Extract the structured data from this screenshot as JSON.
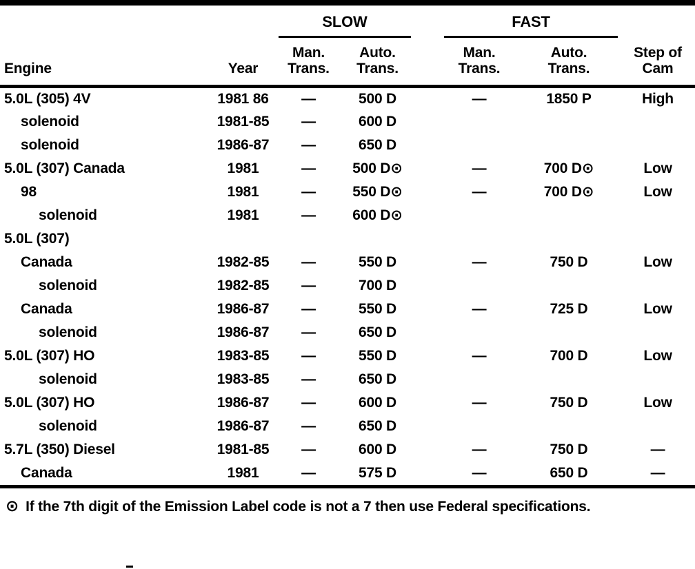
{
  "page": {
    "ink_color": "#000000",
    "paper_color": "#ffffff"
  },
  "table": {
    "groups": {
      "slow": "SLOW",
      "fast": "FAST"
    },
    "columns": {
      "engine": "Engine",
      "year": "Year",
      "slow_man": "Man.\nTrans.",
      "slow_auto": "Auto.\nTrans.",
      "fast_man": "Man.\nTrans.",
      "fast_auto": "Auto.\nTrans.",
      "cam": "Step of\nCam"
    },
    "rows": [
      {
        "engine": "5.0L (305) 4V",
        "indent": 0,
        "year": "1981 86",
        "slow_man": "—",
        "slow_auto": "500 D",
        "fast_man": "—",
        "fast_auto": "1850 P",
        "cam": "High"
      },
      {
        "engine": "solenoid",
        "indent": 1,
        "year": "1981-85",
        "slow_man": "—",
        "slow_auto": "600 D",
        "fast_man": "",
        "fast_auto": "",
        "cam": ""
      },
      {
        "engine": "solenoid",
        "indent": 1,
        "year": "1986-87",
        "slow_man": "—",
        "slow_auto": "650 D",
        "fast_man": "",
        "fast_auto": "",
        "cam": ""
      },
      {
        "engine": "5.0L (307) Canada",
        "indent": 0,
        "year": "1981",
        "slow_man": "—",
        "slow_auto": "500 D⊙",
        "fast_man": "—",
        "fast_auto": "700 D⊙",
        "cam": "Low"
      },
      {
        "engine": "98",
        "indent": 1,
        "year": "1981",
        "slow_man": "—",
        "slow_auto": "550 D⊙",
        "fast_man": "—",
        "fast_auto": "700 D⊙",
        "cam": "Low"
      },
      {
        "engine": "solenoid",
        "indent": 2,
        "year": "1981",
        "slow_man": "—",
        "slow_auto": "600 D⊙",
        "fast_man": "",
        "fast_auto": "",
        "cam": ""
      },
      {
        "engine": "5.0L (307)",
        "indent": 0,
        "year": "",
        "slow_man": "",
        "slow_auto": "",
        "fast_man": "",
        "fast_auto": "",
        "cam": ""
      },
      {
        "engine": "Canada",
        "indent": 1,
        "year": "1982-85",
        "slow_man": "—",
        "slow_auto": "550 D",
        "fast_man": "—",
        "fast_auto": "750 D",
        "cam": "Low"
      },
      {
        "engine": "solenoid",
        "indent": 2,
        "year": "1982-85",
        "slow_man": "—",
        "slow_auto": "700 D",
        "fast_man": "",
        "fast_auto": "",
        "cam": ""
      },
      {
        "engine": "Canada",
        "indent": 1,
        "year": "1986-87",
        "slow_man": "—",
        "slow_auto": "550 D",
        "fast_man": "—",
        "fast_auto": "725 D",
        "cam": "Low"
      },
      {
        "engine": "solenoid",
        "indent": 2,
        "year": "1986-87",
        "slow_man": "—",
        "slow_auto": "650 D",
        "fast_man": "",
        "fast_auto": "",
        "cam": ""
      },
      {
        "engine": "5.0L (307) HO",
        "indent": 0,
        "year": "1983-85",
        "slow_man": "—",
        "slow_auto": "550 D",
        "fast_man": "—",
        "fast_auto": "700 D",
        "cam": "Low"
      },
      {
        "engine": "solenoid",
        "indent": 2,
        "year": "1983-85",
        "slow_man": "—",
        "slow_auto": "650 D",
        "fast_man": "",
        "fast_auto": "",
        "cam": ""
      },
      {
        "engine": "5.0L (307) HO",
        "indent": 0,
        "year": "1986-87",
        "slow_man": "—",
        "slow_auto": "600 D",
        "fast_man": "—",
        "fast_auto": "750 D",
        "cam": "Low"
      },
      {
        "engine": "solenoid",
        "indent": 2,
        "year": "1986-87",
        "slow_man": "—",
        "slow_auto": "650 D",
        "fast_man": "",
        "fast_auto": "",
        "cam": ""
      },
      {
        "engine": "5.7L (350) Diesel",
        "indent": 0,
        "year": "1981-85",
        "slow_man": "—",
        "slow_auto": "600 D",
        "fast_man": "—",
        "fast_auto": "750 D",
        "cam": "—"
      },
      {
        "engine": "Canada",
        "indent": 1,
        "year": "1981",
        "slow_man": "—",
        "slow_auto": "575 D",
        "fast_man": "—",
        "fast_auto": "650 D",
        "cam": "—"
      }
    ]
  },
  "footnote": {
    "marker": "⊙",
    "text": "If the 7th digit of the Emission Label code is not a 7 then use Federal specifications."
  }
}
